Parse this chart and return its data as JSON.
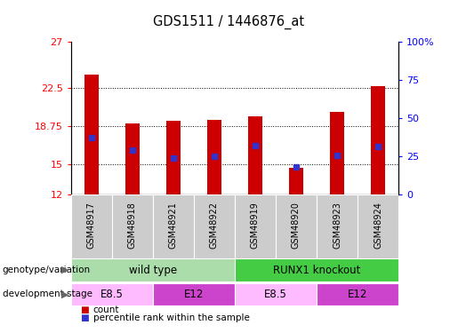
{
  "title": "GDS1511 / 1446876_at",
  "samples": [
    "GSM48917",
    "GSM48918",
    "GSM48921",
    "GSM48922",
    "GSM48919",
    "GSM48920",
    "GSM48923",
    "GSM48924"
  ],
  "count_values": [
    23.8,
    19.0,
    19.25,
    19.3,
    19.7,
    14.6,
    20.1,
    22.6
  ],
  "percentile_values": [
    17.6,
    16.4,
    15.6,
    15.8,
    16.8,
    14.7,
    15.9,
    16.7
  ],
  "ylim_left": [
    12,
    27
  ],
  "ylim_right": [
    0,
    100
  ],
  "yticks_left": [
    12,
    15,
    18.75,
    22.5,
    27
  ],
  "yticks_right": [
    0,
    25,
    50,
    75,
    100
  ],
  "bar_color": "#cc0000",
  "percentile_color": "#3333cc",
  "bar_bottom": 12,
  "geno_data": [
    {
      "label": "wild type",
      "start": 0,
      "end": 4,
      "color": "#aaddaa"
    },
    {
      "label": "RUNX1 knockout",
      "start": 4,
      "end": 8,
      "color": "#44cc44"
    }
  ],
  "dev_data": [
    {
      "label": "E8.5",
      "start": 0,
      "end": 2,
      "color": "#ffbbff"
    },
    {
      "label": "E12",
      "start": 2,
      "end": 4,
      "color": "#cc44cc"
    },
    {
      "label": "E8.5",
      "start": 4,
      "end": 6,
      "color": "#ffbbff"
    },
    {
      "label": "E12",
      "start": 6,
      "end": 8,
      "color": "#cc44cc"
    }
  ],
  "xticklabel_bgcolor": "#cccccc",
  "bar_width": 0.35
}
